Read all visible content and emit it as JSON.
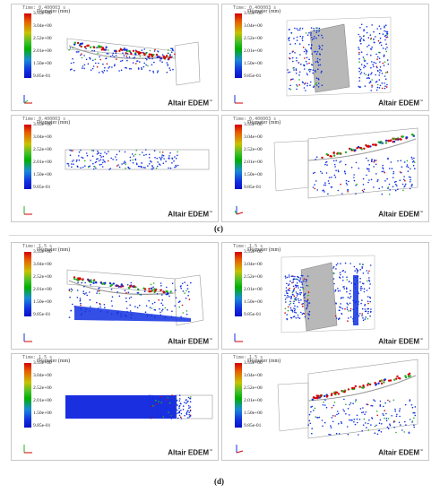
{
  "legend": {
    "title": "Diameter (mm)",
    "ticks": [
      "3.55e+00",
      "3.04e+00",
      "2.52e+00",
      "2.01e+00",
      "1.50e+00",
      "9.85e-01"
    ]
  },
  "brand": "Altair EDEM",
  "trademark": "™",
  "time_labels": {
    "c": "Time: 0.400003 s",
    "d": "Time: 1.5 s"
  },
  "figure_labels": {
    "c": "(c)",
    "d": "(d)"
  },
  "colors": {
    "particle_high": "#d40000",
    "particle_mid": "#20b020",
    "particle_low": "#1030e0",
    "geometry": "#9a9a9a"
  }
}
